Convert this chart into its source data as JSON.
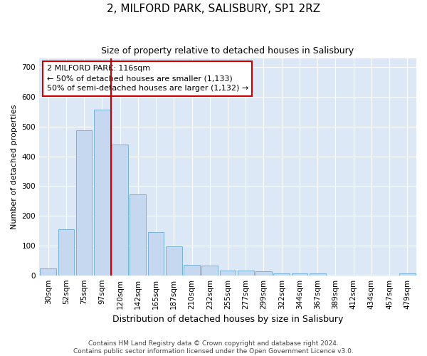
{
  "title": "2, MILFORD PARK, SALISBURY, SP1 2RZ",
  "subtitle": "Size of property relative to detached houses in Salisbury",
  "xlabel": "Distribution of detached houses by size in Salisbury",
  "ylabel": "Number of detached properties",
  "footer_line1": "Contains HM Land Registry data © Crown copyright and database right 2024.",
  "footer_line2": "Contains public sector information licensed under the Open Government Licence v3.0.",
  "bar_labels": [
    "30sqm",
    "52sqm",
    "75sqm",
    "97sqm",
    "120sqm",
    "142sqm",
    "165sqm",
    "187sqm",
    "210sqm",
    "232sqm",
    "255sqm",
    "277sqm",
    "299sqm",
    "322sqm",
    "344sqm",
    "367sqm",
    "389sqm",
    "412sqm",
    "434sqm",
    "457sqm",
    "479sqm"
  ],
  "bar_values": [
    22,
    155,
    487,
    557,
    440,
    272,
    145,
    97,
    35,
    32,
    15,
    16,
    13,
    7,
    6,
    6,
    0,
    0,
    0,
    0,
    7
  ],
  "bar_color": "#c5d8f0",
  "bar_edge_color": "#6aaad4",
  "fig_bg_color": "#ffffff",
  "plot_bg_color": "#dce8f5",
  "grid_color": "#ffffff",
  "ref_line_color": "#cc0000",
  "ref_line_x": 3.5,
  "annotation_text": "2 MILFORD PARK: 116sqm\n← 50% of detached houses are smaller (1,133)\n50% of semi-detached houses are larger (1,132) →",
  "annotation_box_edgecolor": "#cc0000",
  "ylim": [
    0,
    730
  ],
  "yticks": [
    0,
    100,
    200,
    300,
    400,
    500,
    600,
    700
  ],
  "title_fontsize": 11,
  "subtitle_fontsize": 9,
  "xlabel_fontsize": 9,
  "ylabel_fontsize": 8,
  "tick_fontsize": 7.5,
  "footer_fontsize": 6.5,
  "ann_fontsize": 8
}
